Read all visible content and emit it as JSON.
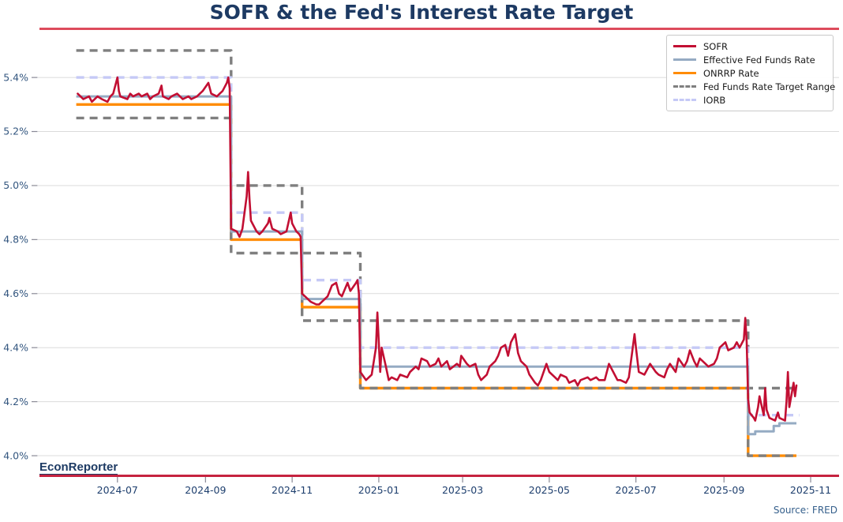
{
  "footer": {
    "brand": "EconReporter",
    "source": "Source: FRED"
  },
  "colors": {
    "title": "#1d3a63",
    "title_rule": "#dd4b5c",
    "footer_rule": "#c62340",
    "grid": "#dbdbdb",
    "y_tick_label": "#33567f",
    "x_tick_label": "#1e3f6e",
    "tick_mark": "#8a8a96",
    "legend_text": "#1a1a1a",
    "sofr": "#c20f33",
    "effr": "#95abc3",
    "onrrp": "#ff8c05",
    "target_range": "#7f7f7f",
    "iorb": "#c5c9f6"
  },
  "chart_data": {
    "type": "line",
    "title": "SOFR & the Fed's Interest Rate Target",
    "xlabel": "",
    "ylabel": "",
    "grid": true,
    "x_axis": {
      "type": "date",
      "domain": [
        "2024-05-06",
        "2025-11-21"
      ],
      "ticks": [
        {
          "date": "2024-07-01",
          "label": "2024-07"
        },
        {
          "date": "2024-09-01",
          "label": "2024-09"
        },
        {
          "date": "2024-11-01",
          "label": "2024-11"
        },
        {
          "date": "2025-01-01",
          "label": "2025-01"
        },
        {
          "date": "2025-03-01",
          "label": "2025-03"
        },
        {
          "date": "2025-05-01",
          "label": "2025-05"
        },
        {
          "date": "2025-07-01",
          "label": "2025-07"
        },
        {
          "date": "2025-09-01",
          "label": "2025-09"
        },
        {
          "date": "2025-11-01",
          "label": "2025-11"
        }
      ]
    },
    "y_axis": {
      "domain": [
        3.93,
        5.564
      ],
      "unit": "%",
      "ticks": [
        {
          "value": 4.0,
          "label": "4.0%"
        },
        {
          "value": 4.2,
          "label": "4.2%"
        },
        {
          "value": 4.4,
          "label": "4.4%"
        },
        {
          "value": 4.6,
          "label": "4.6%"
        },
        {
          "value": 4.8,
          "label": "4.8%"
        },
        {
          "value": 5.0,
          "label": "5.0%"
        },
        {
          "value": 5.2,
          "label": "5.2%"
        },
        {
          "value": 5.4,
          "label": "5.4%"
        }
      ]
    },
    "legend": {
      "position": "top-right",
      "entries": [
        {
          "name": "SOFR",
          "color": "#c20f33",
          "dash": "solid"
        },
        {
          "name": "Effective Fed Funds Rate",
          "color": "#95abc3",
          "dash": "solid"
        },
        {
          "name": "ONRRP Rate",
          "color": "#ff8c05",
          "dash": "solid"
        },
        {
          "name": "Fed Funds Rate Target Range",
          "color": "#7f7f7f",
          "dash": "dashed"
        },
        {
          "name": "IORB",
          "color": "#c5c9f6",
          "dash": "dashed"
        }
      ]
    },
    "rate_steps_note": "Fed policy steps shown at 2024-09-19 (5.25-5.50 to 4.75-5.00), 2024-11-08 (to 4.50-4.75), 2024-12-19 (to 4.25-4.50), 2025-09-18 (to 4.00-4.25)",
    "series": [
      {
        "id": "onrrp",
        "name": "ONRRP Rate",
        "interp": "step",
        "color": "#ff8c05",
        "width": 3.4,
        "points": [
          [
            "2024-06-02",
            5.3
          ],
          [
            "2024-09-19",
            4.8
          ],
          [
            "2024-11-08",
            4.55
          ],
          [
            "2024-12-19",
            4.25
          ],
          [
            "2025-09-18",
            4.0
          ],
          [
            "2025-10-22",
            4.0
          ]
        ]
      },
      {
        "id": "target-range",
        "name": "Fed Funds Rate Target Range",
        "interp": "step",
        "color": "#7f7f7f",
        "width": 3.4,
        "dash": "10 7",
        "points": [
          [
            "2024-06-02",
            5.5
          ],
          [
            "2024-09-19",
            5.0
          ],
          [
            "2024-11-08",
            4.75
          ],
          [
            "2024-12-19",
            4.5
          ],
          [
            "2025-09-18",
            4.25
          ],
          [
            "2025-10-23",
            4.25
          ]
        ],
        "points2": [
          [
            "2024-06-02",
            5.25
          ],
          [
            "2024-09-19",
            4.75
          ],
          [
            "2024-11-08",
            4.5
          ],
          [
            "2024-12-19",
            4.25
          ],
          [
            "2025-09-18",
            4.0
          ],
          [
            "2025-10-22",
            4.0
          ]
        ]
      },
      {
        "id": "iorb",
        "name": "IORB",
        "interp": "step",
        "color": "#c5c9f6",
        "width": 3.4,
        "dash": "10 7",
        "points": [
          [
            "2024-06-02",
            5.4
          ],
          [
            "2024-09-19",
            4.9
          ],
          [
            "2024-11-08",
            4.65
          ],
          [
            "2024-12-19",
            4.4
          ],
          [
            "2025-09-18",
            4.15
          ],
          [
            "2025-10-24",
            4.15
          ]
        ]
      },
      {
        "id": "effr",
        "name": "Effective Fed Funds Rate",
        "interp": "step",
        "color": "#95abc3",
        "width": 3.0,
        "points": [
          [
            "2024-06-02",
            5.33
          ],
          [
            "2024-09-19",
            4.83
          ],
          [
            "2024-11-08",
            4.58
          ],
          [
            "2024-12-19",
            4.33
          ],
          [
            "2025-09-18",
            4.08
          ],
          [
            "2025-09-23",
            4.09
          ],
          [
            "2025-10-06",
            4.11
          ],
          [
            "2025-10-10",
            4.12
          ],
          [
            "2025-10-22",
            4.12
          ]
        ]
      },
      {
        "id": "sofr",
        "name": "SOFR",
        "interp": "linear",
        "color": "#c20f33",
        "width": 2.6,
        "points": [
          [
            "2024-06-03",
            5.34
          ],
          [
            "2024-06-05",
            5.33
          ],
          [
            "2024-06-07",
            5.32
          ],
          [
            "2024-06-11",
            5.33
          ],
          [
            "2024-06-13",
            5.31
          ],
          [
            "2024-06-17",
            5.33
          ],
          [
            "2024-06-20",
            5.32
          ],
          [
            "2024-06-24",
            5.31
          ],
          [
            "2024-06-26",
            5.33
          ],
          [
            "2024-06-28",
            5.34
          ],
          [
            "2024-07-01",
            5.4
          ],
          [
            "2024-07-02",
            5.35
          ],
          [
            "2024-07-03",
            5.33
          ],
          [
            "2024-07-08",
            5.32
          ],
          [
            "2024-07-10",
            5.34
          ],
          [
            "2024-07-12",
            5.33
          ],
          [
            "2024-07-16",
            5.34
          ],
          [
            "2024-07-18",
            5.33
          ],
          [
            "2024-07-22",
            5.34
          ],
          [
            "2024-07-24",
            5.32
          ],
          [
            "2024-07-26",
            5.33
          ],
          [
            "2024-07-30",
            5.34
          ],
          [
            "2024-08-01",
            5.37
          ],
          [
            "2024-08-02",
            5.33
          ],
          [
            "2024-08-06",
            5.32
          ],
          [
            "2024-08-08",
            5.33
          ],
          [
            "2024-08-12",
            5.34
          ],
          [
            "2024-08-14",
            5.33
          ],
          [
            "2024-08-16",
            5.32
          ],
          [
            "2024-08-20",
            5.33
          ],
          [
            "2024-08-22",
            5.32
          ],
          [
            "2024-08-26",
            5.33
          ],
          [
            "2024-08-28",
            5.34
          ],
          [
            "2024-08-30",
            5.35
          ],
          [
            "2024-09-03",
            5.38
          ],
          [
            "2024-09-05",
            5.34
          ],
          [
            "2024-09-09",
            5.33
          ],
          [
            "2024-09-11",
            5.34
          ],
          [
            "2024-09-13",
            5.35
          ],
          [
            "2024-09-16",
            5.38
          ],
          [
            "2024-09-17",
            5.4
          ],
          [
            "2024-09-18",
            5.36
          ],
          [
            "2024-09-19",
            4.84
          ],
          [
            "2024-09-23",
            4.83
          ],
          [
            "2024-09-25",
            4.81
          ],
          [
            "2024-09-27",
            4.84
          ],
          [
            "2024-09-30",
            4.96
          ],
          [
            "2024-10-01",
            5.05
          ],
          [
            "2024-10-02",
            4.95
          ],
          [
            "2024-10-03",
            4.87
          ],
          [
            "2024-10-07",
            4.83
          ],
          [
            "2024-10-09",
            4.82
          ],
          [
            "2024-10-11",
            4.83
          ],
          [
            "2024-10-15",
            4.86
          ],
          [
            "2024-10-16",
            4.88
          ],
          [
            "2024-10-18",
            4.84
          ],
          [
            "2024-10-22",
            4.83
          ],
          [
            "2024-10-24",
            4.82
          ],
          [
            "2024-10-28",
            4.83
          ],
          [
            "2024-10-31",
            4.9
          ],
          [
            "2024-11-01",
            4.86
          ],
          [
            "2024-11-04",
            4.83
          ],
          [
            "2024-11-06",
            4.82
          ],
          [
            "2024-11-07",
            4.81
          ],
          [
            "2024-11-08",
            4.6
          ],
          [
            "2024-11-12",
            4.58
          ],
          [
            "2024-11-14",
            4.57
          ],
          [
            "2024-11-18",
            4.56
          ],
          [
            "2024-11-20",
            4.56
          ],
          [
            "2024-11-22",
            4.57
          ],
          [
            "2024-11-26",
            4.59
          ],
          [
            "2024-11-29",
            4.63
          ],
          [
            "2024-12-02",
            4.64
          ],
          [
            "2024-12-04",
            4.6
          ],
          [
            "2024-12-06",
            4.59
          ],
          [
            "2024-12-10",
            4.64
          ],
          [
            "2024-12-12",
            4.61
          ],
          [
            "2024-12-16",
            4.64
          ],
          [
            "2024-12-17",
            4.65
          ],
          [
            "2024-12-18",
            4.6
          ],
          [
            "2024-12-19",
            4.31
          ],
          [
            "2024-12-23",
            4.28
          ],
          [
            "2024-12-27",
            4.3
          ],
          [
            "2024-12-30",
            4.4
          ],
          [
            "2024-12-31",
            4.53
          ],
          [
            "2025-01-02",
            4.31
          ],
          [
            "2025-01-03",
            4.4
          ],
          [
            "2025-01-06",
            4.33
          ],
          [
            "2025-01-08",
            4.28
          ],
          [
            "2025-01-10",
            4.29
          ],
          [
            "2025-01-14",
            4.28
          ],
          [
            "2025-01-16",
            4.3
          ],
          [
            "2025-01-21",
            4.29
          ],
          [
            "2025-01-23",
            4.31
          ],
          [
            "2025-01-27",
            4.33
          ],
          [
            "2025-01-29",
            4.32
          ],
          [
            "2025-01-31",
            4.36
          ],
          [
            "2025-02-04",
            4.35
          ],
          [
            "2025-02-06",
            4.33
          ],
          [
            "2025-02-10",
            4.34
          ],
          [
            "2025-02-12",
            4.36
          ],
          [
            "2025-02-14",
            4.33
          ],
          [
            "2025-02-18",
            4.35
          ],
          [
            "2025-02-20",
            4.32
          ],
          [
            "2025-02-25",
            4.34
          ],
          [
            "2025-02-27",
            4.33
          ],
          [
            "2025-02-28",
            4.37
          ],
          [
            "2025-03-04",
            4.34
          ],
          [
            "2025-03-06",
            4.33
          ],
          [
            "2025-03-10",
            4.34
          ],
          [
            "2025-03-12",
            4.3
          ],
          [
            "2025-03-14",
            4.28
          ],
          [
            "2025-03-18",
            4.3
          ],
          [
            "2025-03-20",
            4.33
          ],
          [
            "2025-03-24",
            4.35
          ],
          [
            "2025-03-26",
            4.37
          ],
          [
            "2025-03-28",
            4.4
          ],
          [
            "2025-03-31",
            4.41
          ],
          [
            "2025-04-02",
            4.37
          ],
          [
            "2025-04-04",
            4.42
          ],
          [
            "2025-04-07",
            4.45
          ],
          [
            "2025-04-09",
            4.38
          ],
          [
            "2025-04-11",
            4.35
          ],
          [
            "2025-04-15",
            4.33
          ],
          [
            "2025-04-17",
            4.3
          ],
          [
            "2025-04-21",
            4.27
          ],
          [
            "2025-04-23",
            4.26
          ],
          [
            "2025-04-25",
            4.28
          ],
          [
            "2025-04-29",
            4.34
          ],
          [
            "2025-05-01",
            4.31
          ],
          [
            "2025-05-05",
            4.29
          ],
          [
            "2025-05-07",
            4.28
          ],
          [
            "2025-05-09",
            4.3
          ],
          [
            "2025-05-13",
            4.29
          ],
          [
            "2025-05-15",
            4.27
          ],
          [
            "2025-05-19",
            4.28
          ],
          [
            "2025-05-21",
            4.26
          ],
          [
            "2025-05-23",
            4.28
          ],
          [
            "2025-05-28",
            4.29
          ],
          [
            "2025-05-30",
            4.28
          ],
          [
            "2025-06-03",
            4.29
          ],
          [
            "2025-06-05",
            4.28
          ],
          [
            "2025-06-09",
            4.28
          ],
          [
            "2025-06-11",
            4.32
          ],
          [
            "2025-06-12",
            4.34
          ],
          [
            "2025-06-16",
            4.3
          ],
          [
            "2025-06-18",
            4.28
          ],
          [
            "2025-06-20",
            4.28
          ],
          [
            "2025-06-24",
            4.27
          ],
          [
            "2025-06-26",
            4.29
          ],
          [
            "2025-06-30",
            4.45
          ],
          [
            "2025-07-01",
            4.4
          ],
          [
            "2025-07-03",
            4.31
          ],
          [
            "2025-07-07",
            4.3
          ],
          [
            "2025-07-09",
            4.32
          ],
          [
            "2025-07-11",
            4.34
          ],
          [
            "2025-07-15",
            4.31
          ],
          [
            "2025-07-17",
            4.3
          ],
          [
            "2025-07-21",
            4.29
          ],
          [
            "2025-07-23",
            4.32
          ],
          [
            "2025-07-25",
            4.34
          ],
          [
            "2025-07-29",
            4.31
          ],
          [
            "2025-07-31",
            4.36
          ],
          [
            "2025-08-04",
            4.33
          ],
          [
            "2025-08-06",
            4.35
          ],
          [
            "2025-08-08",
            4.39
          ],
          [
            "2025-08-11",
            4.35
          ],
          [
            "2025-08-13",
            4.33
          ],
          [
            "2025-08-15",
            4.36
          ],
          [
            "2025-08-19",
            4.34
          ],
          [
            "2025-08-21",
            4.33
          ],
          [
            "2025-08-25",
            4.34
          ],
          [
            "2025-08-27",
            4.36
          ],
          [
            "2025-08-29",
            4.4
          ],
          [
            "2025-09-02",
            4.42
          ],
          [
            "2025-09-04",
            4.39
          ],
          [
            "2025-09-08",
            4.4
          ],
          [
            "2025-09-10",
            4.42
          ],
          [
            "2025-09-12",
            4.4
          ],
          [
            "2025-09-15",
            4.43
          ],
          [
            "2025-09-16",
            4.51
          ],
          [
            "2025-09-17",
            4.42
          ],
          [
            "2025-09-18",
            4.21
          ],
          [
            "2025-09-19",
            4.16
          ],
          [
            "2025-09-22",
            4.14
          ],
          [
            "2025-09-23",
            4.13
          ],
          [
            "2025-09-25",
            4.18
          ],
          [
            "2025-09-26",
            4.22
          ],
          [
            "2025-09-29",
            4.15
          ],
          [
            "2025-09-30",
            4.25
          ],
          [
            "2025-10-01",
            4.17
          ],
          [
            "2025-10-03",
            4.14
          ],
          [
            "2025-10-07",
            4.13
          ],
          [
            "2025-10-09",
            4.16
          ],
          [
            "2025-10-10",
            4.14
          ],
          [
            "2025-10-14",
            4.13
          ],
          [
            "2025-10-15",
            4.2
          ],
          [
            "2025-10-16",
            4.31
          ],
          [
            "2025-10-17",
            4.18
          ],
          [
            "2025-10-20",
            4.27
          ],
          [
            "2025-10-21",
            4.22
          ],
          [
            "2025-10-22",
            4.26
          ]
        ]
      }
    ]
  }
}
